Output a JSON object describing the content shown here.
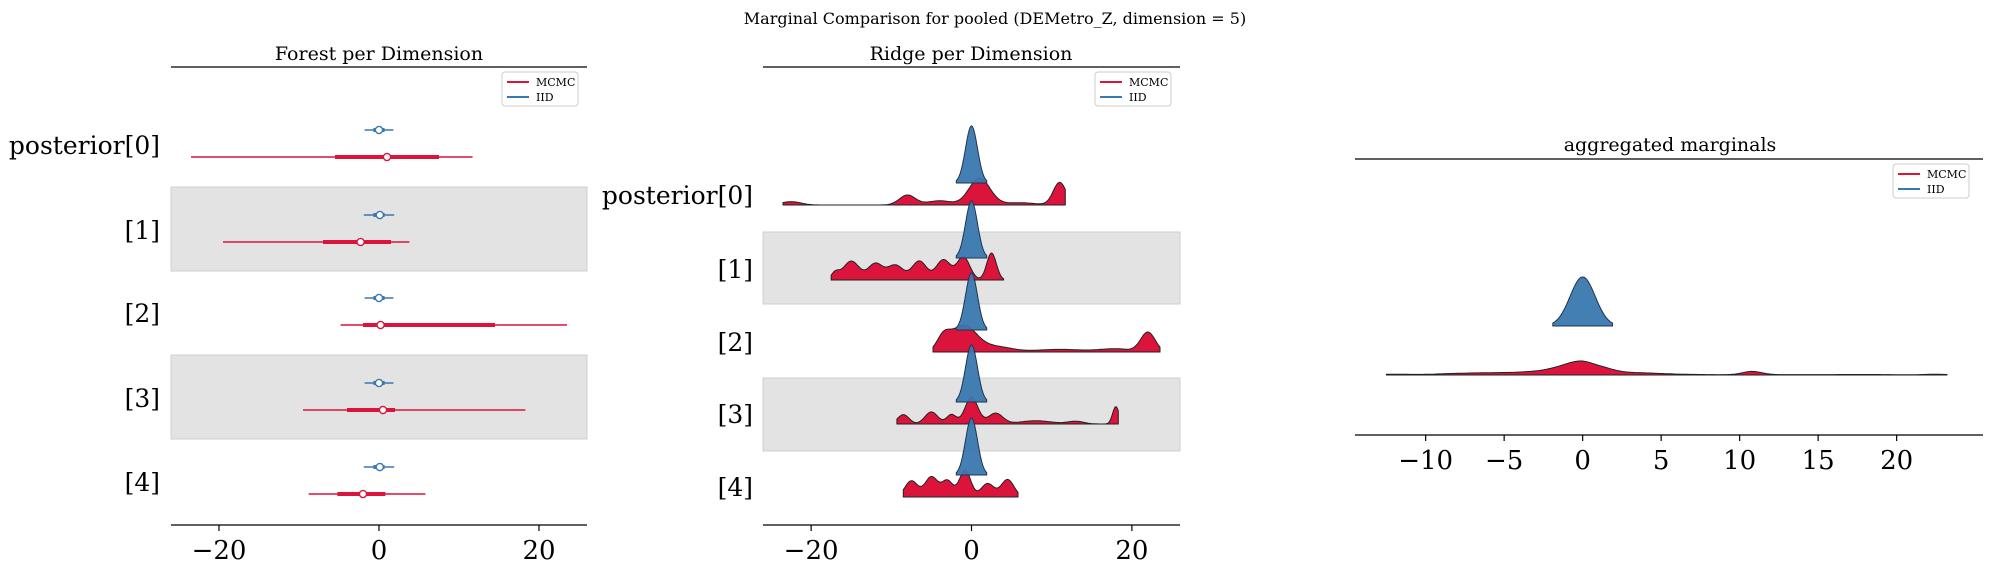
{
  "suptitle": "Marginal Comparison for pooled (DEMetro_Z, dimension = 5)",
  "colors": {
    "mcmc": "#dc143c",
    "iid": "#3a78b0",
    "band": "#e3e3e3"
  },
  "legend": {
    "mcmc": "MCMC",
    "iid": "IID"
  },
  "forest": {
    "title": "Forest per Dimension",
    "xlim": [
      -26,
      26
    ],
    "xticks": [
      -20,
      0,
      20
    ],
    "xtick_labels": [
      "−20",
      "0",
      "20"
    ],
    "rows": [
      {
        "label": "posterior[0]",
        "iid": {
          "hdi": [
            -1.8,
            1.8
          ],
          "iqr": [
            -0.7,
            0.7
          ],
          "median": 0.0
        },
        "mcmc": {
          "hdi": [
            -23.5,
            11.7
          ],
          "iqr": [
            -5.5,
            7.5
          ],
          "median": 1.0
        }
      },
      {
        "label": "[1]",
        "iid": {
          "hdi": [
            -1.9,
            1.9
          ],
          "iqr": [
            -0.7,
            0.7
          ],
          "median": 0.1
        },
        "mcmc": {
          "hdi": [
            -19.5,
            3.8
          ],
          "iqr": [
            -7.0,
            1.5
          ],
          "median": -2.3
        }
      },
      {
        "label": "[2]",
        "iid": {
          "hdi": [
            -1.8,
            1.8
          ],
          "iqr": [
            -0.7,
            0.7
          ],
          "median": 0.0
        },
        "mcmc": {
          "hdi": [
            -4.8,
            23.5
          ],
          "iqr": [
            -2.0,
            14.5
          ],
          "median": 0.2
        }
      },
      {
        "label": "[3]",
        "iid": {
          "hdi": [
            -1.8,
            1.8
          ],
          "iqr": [
            -0.7,
            0.7
          ],
          "median": 0.0
        },
        "mcmc": {
          "hdi": [
            -9.5,
            18.3
          ],
          "iqr": [
            -4.0,
            2.0
          ],
          "median": 0.5
        }
      },
      {
        "label": "[4]",
        "iid": {
          "hdi": [
            -1.9,
            1.9
          ],
          "iqr": [
            -0.7,
            0.7
          ],
          "median": 0.1
        },
        "mcmc": {
          "hdi": [
            -8.8,
            5.8
          ],
          "iqr": [
            -5.2,
            0.8
          ],
          "median": -2.0
        }
      }
    ]
  },
  "ridge": {
    "title": "Ridge per Dimension",
    "xlim": [
      -26,
      26
    ],
    "xticks": [
      -20,
      0,
      20
    ],
    "xtick_labels": [
      "−20",
      "0",
      "20"
    ],
    "rows": [
      {
        "label": "posterior[0]",
        "mcmc_range": [
          -23.5,
          11.7
        ],
        "mcmc_bumps": [
          [
            -22.5,
            1.2,
            0.12
          ],
          [
            -8.0,
            1.0,
            0.35
          ],
          [
            -4.0,
            1.5,
            0.15
          ],
          [
            1.0,
            1.3,
            0.95
          ],
          [
            11.0,
            0.8,
            0.8
          ],
          [
            6.0,
            2.0,
            0.08
          ]
        ]
      },
      {
        "label": "[1]",
        "mcmc_range": [
          -17.5,
          4.0
        ],
        "mcmc_bumps": [
          [
            -17.0,
            0.5,
            0.25
          ],
          [
            -15.0,
            1.0,
            0.7
          ],
          [
            -12.0,
            0.9,
            0.6
          ],
          [
            -9.5,
            1.0,
            0.55
          ],
          [
            -6.5,
            0.9,
            0.7
          ],
          [
            -3.5,
            0.9,
            0.75
          ],
          [
            -1.0,
            0.8,
            0.85
          ],
          [
            2.5,
            0.6,
            1.0
          ]
        ]
      },
      {
        "label": "[2]",
        "mcmc_range": [
          -4.8,
          23.5
        ],
        "mcmc_bumps": [
          [
            -3.5,
            0.8,
            0.5
          ],
          [
            -1.0,
            1.6,
            1.0
          ],
          [
            3.0,
            2.0,
            0.2
          ],
          [
            11.0,
            3.0,
            0.1
          ],
          [
            18.0,
            2.0,
            0.12
          ],
          [
            22.0,
            0.9,
            0.75
          ]
        ]
      },
      {
        "label": "[3]",
        "mcmc_range": [
          -9.3,
          18.3
        ],
        "mcmc_bumps": [
          [
            -8.5,
            0.7,
            0.35
          ],
          [
            -5.0,
            0.8,
            0.45
          ],
          [
            -2.5,
            0.6,
            0.35
          ],
          [
            0.0,
            0.8,
            1.0
          ],
          [
            3.0,
            0.9,
            0.4
          ],
          [
            8.0,
            2.0,
            0.12
          ],
          [
            13.0,
            1.0,
            0.1
          ],
          [
            18.0,
            0.4,
            0.65
          ]
        ]
      },
      {
        "label": "[4]",
        "mcmc_range": [
          -8.5,
          5.8
        ],
        "mcmc_bumps": [
          [
            -7.5,
            0.8,
            0.6
          ],
          [
            -5.0,
            0.8,
            0.75
          ],
          [
            -3.0,
            0.7,
            0.6
          ],
          [
            -0.8,
            0.7,
            1.0
          ],
          [
            2.0,
            0.8,
            0.5
          ],
          [
            4.5,
            0.8,
            0.65
          ]
        ]
      }
    ]
  },
  "aggregated": {
    "title": "aggregated marginals",
    "xlim": [
      -14.5,
      25.5
    ],
    "xticks": [
      -10,
      -5,
      0,
      5,
      10,
      15,
      20
    ],
    "xtick_labels": [
      "−10",
      "−5",
      "0",
      "5",
      "10",
      "15",
      "20"
    ],
    "iid_range": [
      -1.9,
      1.9
    ],
    "mcmc_range": [
      -12.5,
      23.2
    ],
    "mcmc_bumps": [
      [
        -12.0,
        1.0,
        0.08
      ],
      [
        -8.0,
        1.5,
        0.15
      ],
      [
        -6.0,
        1.2,
        0.1
      ],
      [
        -4.0,
        1.5,
        0.2
      ],
      [
        -2.0,
        1.2,
        0.35
      ],
      [
        -1.0,
        0.8,
        0.6
      ],
      [
        0.0,
        0.7,
        0.9
      ],
      [
        1.2,
        0.8,
        0.6
      ],
      [
        3.0,
        1.5,
        0.2
      ],
      [
        5.0,
        2.0,
        0.08
      ],
      [
        10.8,
        0.6,
        0.35
      ],
      [
        12.0,
        3.0,
        0.04
      ],
      [
        18.0,
        2.0,
        0.05
      ],
      [
        22.5,
        0.8,
        0.07
      ]
    ]
  }
}
